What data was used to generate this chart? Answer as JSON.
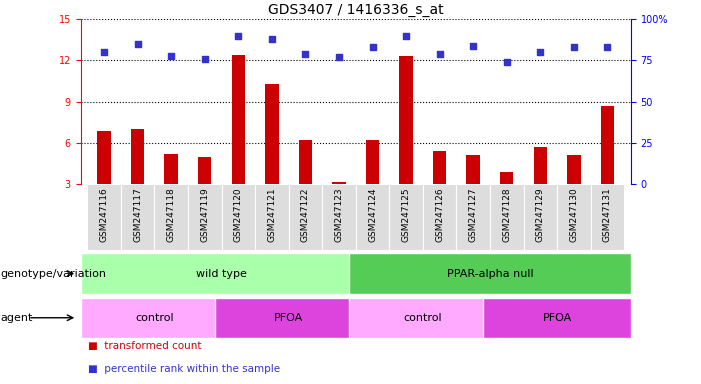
{
  "title": "GDS3407 / 1416336_s_at",
  "samples": [
    "GSM247116",
    "GSM247117",
    "GSM247118",
    "GSM247119",
    "GSM247120",
    "GSM247121",
    "GSM247122",
    "GSM247123",
    "GSM247124",
    "GSM247125",
    "GSM247126",
    "GSM247127",
    "GSM247128",
    "GSM247129",
    "GSM247130",
    "GSM247131"
  ],
  "transformed_count": [
    6.9,
    7.0,
    5.2,
    5.0,
    12.4,
    10.3,
    6.2,
    3.2,
    6.2,
    12.3,
    5.4,
    5.1,
    3.9,
    5.7,
    5.1,
    8.7
  ],
  "percentile_rank": [
    80,
    85,
    78,
    76,
    90,
    88,
    79,
    77,
    83,
    90,
    79,
    84,
    74,
    80,
    83,
    83
  ],
  "ylim_left": [
    3,
    15
  ],
  "ylim_right": [
    0,
    100
  ],
  "yticks_left": [
    3,
    6,
    9,
    12,
    15
  ],
  "yticks_right": [
    0,
    25,
    50,
    75,
    100
  ],
  "bar_color": "#cc0000",
  "marker_color": "#3333cc",
  "bar_width": 0.4,
  "genotype_groups": [
    {
      "label": "wild type",
      "start": 0,
      "end": 8,
      "color": "#aaffaa"
    },
    {
      "label": "PPAR-alpha null",
      "start": 8,
      "end": 16,
      "color": "#55cc55"
    }
  ],
  "agent_groups": [
    {
      "label": "control",
      "start": 0,
      "end": 4,
      "color": "#ffaaff"
    },
    {
      "label": "PFOA",
      "start": 4,
      "end": 8,
      "color": "#dd44dd"
    },
    {
      "label": "control",
      "start": 8,
      "end": 12,
      "color": "#ffaaff"
    },
    {
      "label": "PFOA",
      "start": 12,
      "end": 16,
      "color": "#dd44dd"
    }
  ],
  "legend_items": [
    {
      "label": "transformed count",
      "color": "#cc0000"
    },
    {
      "label": "percentile rank within the sample",
      "color": "#3333cc"
    }
  ],
  "background_color": "#ffffff",
  "title_fontsize": 10,
  "tick_fontsize": 7,
  "band_fontsize": 8,
  "label_fontsize": 8
}
